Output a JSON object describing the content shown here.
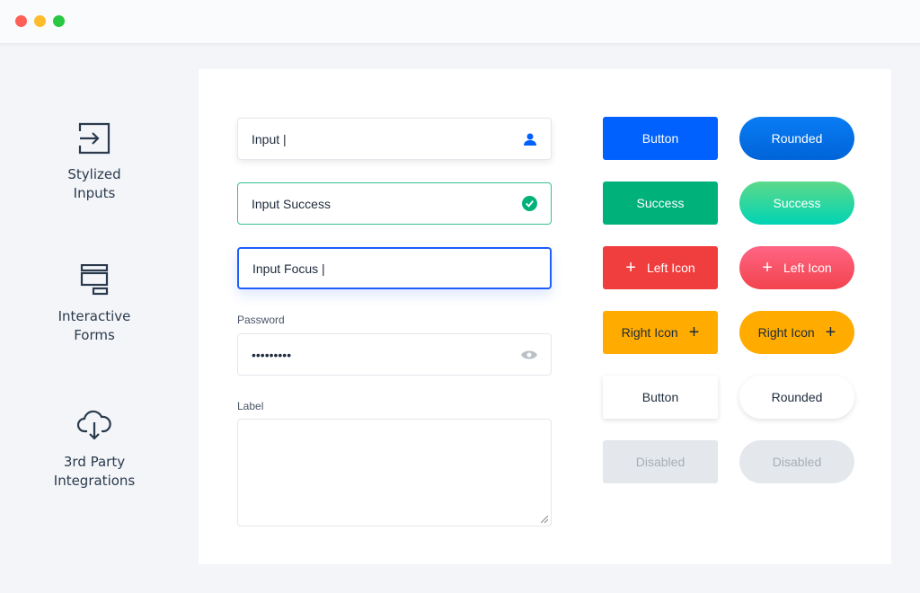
{
  "window": {
    "controls": [
      "#fe5f57",
      "#febc2e",
      "#28c840"
    ]
  },
  "sidebar": {
    "items": [
      {
        "label1": "Stylized",
        "label2": "Inputs",
        "icon": "sign-in-icon"
      },
      {
        "label1": "Interactive",
        "label2": "Forms",
        "icon": "form-icon"
      },
      {
        "label1": "3rd Party",
        "label2": "Integrations",
        "icon": "cloud-download-icon"
      }
    ]
  },
  "form": {
    "input": "Input",
    "success": "Input Success",
    "focus": "Input Focus",
    "password_label": "Password",
    "password_value": "•••••••••",
    "textarea_label": "Label"
  },
  "buttons": {
    "button": "Button",
    "rounded": "Rounded",
    "success": "Success",
    "left_icon": "Left Icon",
    "right_icon": "Right Icon",
    "disabled": "Disabled"
  },
  "colors": {
    "primary": "#0061ff",
    "success": "#00b27a",
    "danger": "#f03d3d",
    "warning": "#ffab00",
    "disabled": "#e4e7eb"
  }
}
